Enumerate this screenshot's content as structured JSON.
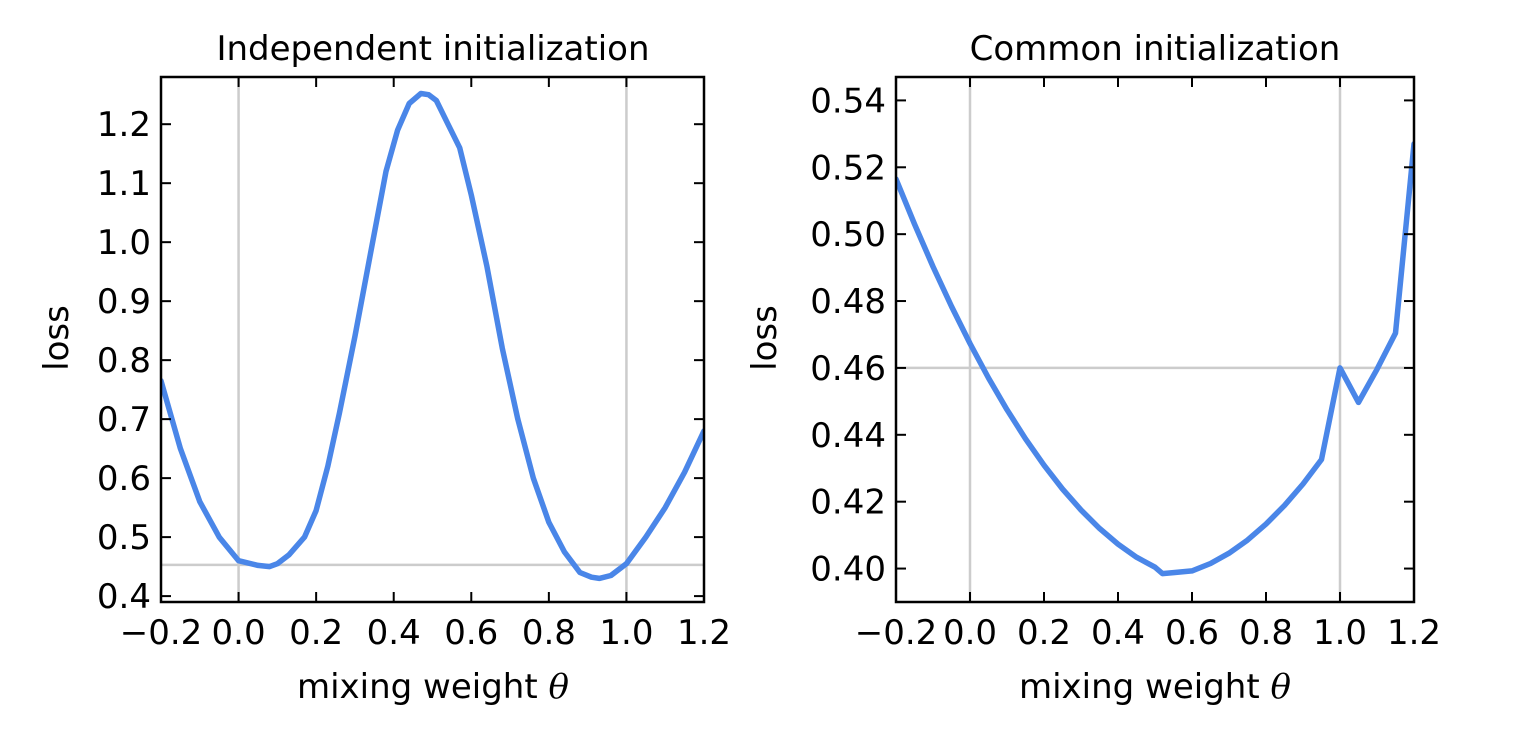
{
  "colors": {
    "curve": "#4a86e8",
    "reference_line": "#cccccc",
    "axes": "#000000"
  },
  "chart_data": [
    {
      "type": "line",
      "title": "Independent initialization",
      "xlabel": "mixing weight",
      "xlabel_symbol": "θ",
      "ylabel": "loss",
      "xlim": [
        -0.2,
        1.2
      ],
      "ylim": [
        0.39,
        1.28
      ],
      "xticks": [
        -0.2,
        0.0,
        0.2,
        0.4,
        0.6,
        0.8,
        1.0,
        1.2
      ],
      "xtick_labels": [
        "−0.2",
        "0.0",
        "0.2",
        "0.4",
        "0.6",
        "0.8",
        "1.0",
        "1.2"
      ],
      "yticks": [
        0.4,
        0.5,
        0.6,
        0.7,
        0.8,
        0.9,
        1.0,
        1.1,
        1.2
      ],
      "ytick_labels": [
        "0.4",
        "0.5",
        "0.6",
        "0.7",
        "0.8",
        "0.9",
        "1.0",
        "1.1",
        "1.2"
      ],
      "reference_lines": {
        "vertical_x": [
          0.0,
          1.0
        ],
        "horizontal_y": [
          0.453
        ]
      },
      "grid": false,
      "series": [
        {
          "x": [
            -0.2,
            -0.15,
            -0.1,
            -0.05,
            0.0,
            0.05,
            0.08,
            0.1,
            0.13,
            0.17,
            0.2,
            0.23,
            0.26,
            0.3,
            0.34,
            0.38,
            0.41,
            0.44,
            0.47,
            0.49,
            0.51,
            0.54,
            0.57,
            0.6,
            0.64,
            0.68,
            0.72,
            0.76,
            0.8,
            0.84,
            0.88,
            0.91,
            0.93,
            0.96,
            1.0,
            1.05,
            1.1,
            1.15,
            1.2
          ],
          "y": [
            0.765,
            0.65,
            0.56,
            0.5,
            0.46,
            0.452,
            0.45,
            0.455,
            0.47,
            0.5,
            0.545,
            0.62,
            0.71,
            0.84,
            0.98,
            1.12,
            1.19,
            1.235,
            1.252,
            1.25,
            1.24,
            1.2,
            1.16,
            1.08,
            0.96,
            0.82,
            0.7,
            0.6,
            0.525,
            0.475,
            0.44,
            0.432,
            0.43,
            0.435,
            0.455,
            0.5,
            0.55,
            0.61,
            0.68
          ]
        }
      ]
    },
    {
      "type": "line",
      "title": "Common initialization",
      "xlabel": "mixing weight",
      "xlabel_symbol": "θ",
      "ylabel": "loss",
      "xlim": [
        -0.2,
        1.2
      ],
      "ylim": [
        0.39,
        0.547
      ],
      "xticks": [
        -0.2,
        0.0,
        0.2,
        0.4,
        0.6,
        0.8,
        1.0,
        1.2
      ],
      "xtick_labels": [
        "−0.2",
        "0.0",
        "0.2",
        "0.4",
        "0.6",
        "0.8",
        "1.0",
        "1.2"
      ],
      "yticks": [
        0.4,
        0.42,
        0.44,
        0.46,
        0.48,
        0.5,
        0.52,
        0.54
      ],
      "ytick_labels": [
        "0.40",
        "0.42",
        "0.44",
        "0.46",
        "0.48",
        "0.50",
        "0.52",
        "0.54"
      ],
      "reference_lines": {
        "vertical_x": [
          0.0,
          1.0
        ],
        "horizontal_y": [
          0.46
        ]
      },
      "grid": false,
      "series": [
        {
          "x": [
            -0.2,
            -0.15,
            -0.1,
            -0.05,
            0.0,
            0.05,
            0.1,
            0.15,
            0.2,
            0.25,
            0.3,
            0.35,
            0.4,
            0.45,
            0.5,
            0.52,
            0.55,
            0.6,
            0.65,
            0.7,
            0.75,
            0.8,
            0.85,
            0.9,
            0.95,
            1.0,
            1.05,
            1.1,
            1.15,
            1.2
          ],
          "y": [
            0.5165,
            0.503,
            0.4903,
            0.4784,
            0.4673,
            0.457,
            0.4475,
            0.4388,
            0.4309,
            0.4238,
            0.4175,
            0.412,
            0.4073,
            0.4034,
            0.4004,
            0.3985,
            0.3988,
            0.3993,
            0.4015,
            0.4046,
            0.4085,
            0.4133,
            0.4189,
            0.4253,
            0.4326,
            0.46,
            0.4497,
            0.4596,
            0.4704,
            0.527
          ]
        }
      ]
    }
  ]
}
